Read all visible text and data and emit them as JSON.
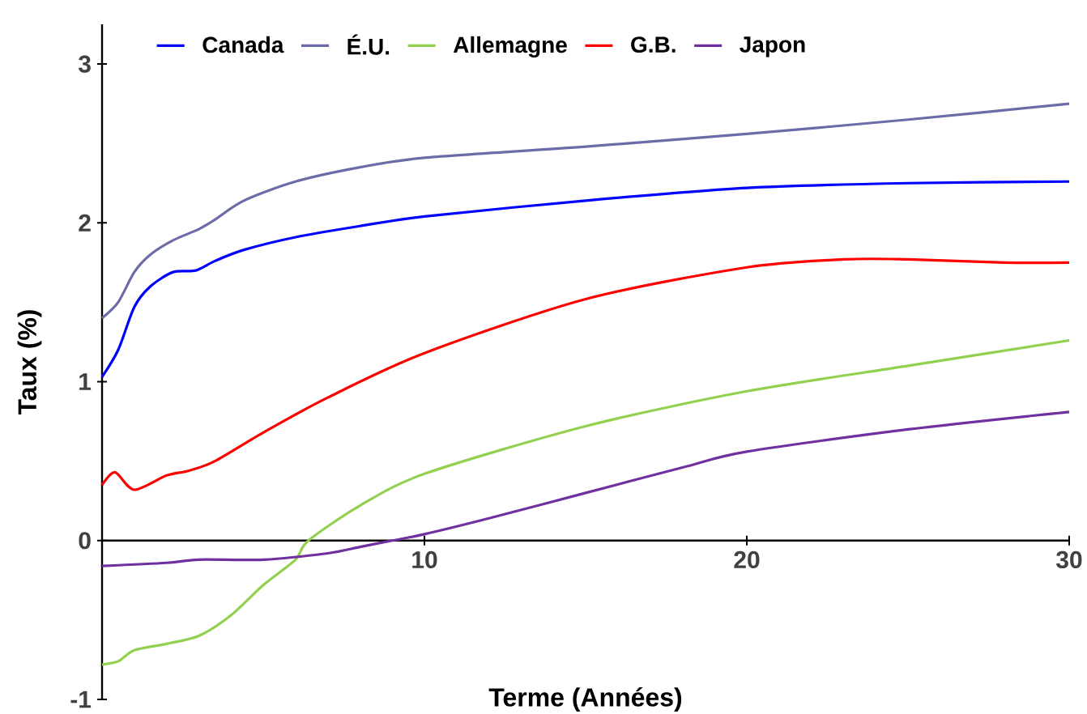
{
  "chart_data": {
    "type": "line",
    "xlabel": "Terme (Années)",
    "ylabel": "Taux (%)",
    "xlim": [
      0,
      30
    ],
    "ylim": [
      -1,
      3.25
    ],
    "xticks": [
      10,
      20,
      30
    ],
    "yticks": [
      -1,
      0,
      1,
      2,
      3
    ],
    "legend": "top left",
    "grid": false,
    "marker": "none",
    "line_style": "solid",
    "series": [
      {
        "name": "Canada",
        "color": "#0000ff",
        "x": [
          0,
          0.5,
          1,
          1.5,
          2.2,
          2.9,
          3.5,
          4.4,
          6,
          8,
          10,
          15,
          20,
          25,
          30
        ],
        "values": [
          1.03,
          1.2,
          1.47,
          1.6,
          1.69,
          1.7,
          1.76,
          1.83,
          1.91,
          1.98,
          2.04,
          2.14,
          2.22,
          2.25,
          2.26
        ]
      },
      {
        "name": "É.U.",
        "color": "#6b6ba8",
        "x": [
          0,
          0.5,
          1,
          1.5,
          2.2,
          3,
          3.5,
          4.4,
          6,
          8,
          10,
          15,
          20,
          25,
          30
        ],
        "values": [
          1.4,
          1.5,
          1.69,
          1.8,
          1.89,
          1.96,
          2.02,
          2.14,
          2.26,
          2.35,
          2.41,
          2.48,
          2.56,
          2.65,
          2.75
        ]
      },
      {
        "name": "Allemagne",
        "color": "#92d050",
        "x": [
          0,
          0.5,
          1,
          2,
          3,
          4,
          5,
          6,
          6.4,
          8,
          10,
          15,
          20,
          25,
          30
        ],
        "values": [
          -0.78,
          -0.76,
          -0.69,
          -0.65,
          -0.6,
          -0.47,
          -0.28,
          -0.12,
          0,
          0.22,
          0.42,
          0.72,
          0.94,
          1.1,
          1.26
        ]
      },
      {
        "name": "G.B.",
        "color": "#ff0000",
        "x": [
          0,
          0.4,
          1,
          2,
          2.7,
          3.5,
          5,
          7,
          10,
          15,
          20,
          23,
          25,
          28,
          30
        ],
        "values": [
          0.35,
          0.43,
          0.32,
          0.41,
          0.44,
          0.5,
          0.68,
          0.9,
          1.18,
          1.52,
          1.72,
          1.77,
          1.77,
          1.75,
          1.75
        ]
      },
      {
        "name": "Japon",
        "color": "#7030a0",
        "x": [
          0,
          2,
          3,
          5,
          7,
          8,
          9,
          10,
          12,
          15,
          18,
          20,
          25,
          30
        ],
        "values": [
          -0.16,
          -0.14,
          -0.12,
          -0.12,
          -0.08,
          -0.04,
          0,
          0.04,
          0.14,
          0.3,
          0.46,
          0.56,
          0.7,
          0.81
        ]
      }
    ]
  }
}
